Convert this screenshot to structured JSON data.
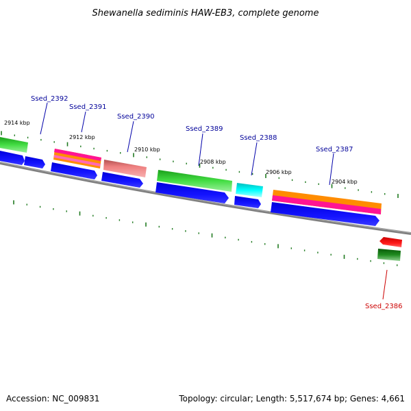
{
  "title": "Shewanella sediminis HAW-EB3, complete genome",
  "footer": {
    "accession": "Accession: NC_009831",
    "summary": "Topology: circular; Length: 5,517,674 bp; Genes: 4,661"
  },
  "ticks": [
    "2914 kbp",
    "2912 kbp",
    "2910 kbp",
    "2908 kbp",
    "2906 kbp",
    "2904 kbp"
  ],
  "genes": [
    {
      "id": "Ssed_2392"
    },
    {
      "id": "Ssed_2391"
    },
    {
      "id": "Ssed_2390"
    },
    {
      "id": "Ssed_2389"
    },
    {
      "id": "Ssed_2388"
    },
    {
      "id": "Ssed_2387"
    },
    {
      "id": "Ssed_2386"
    }
  ],
  "colors": {
    "backbone": "#808080",
    "cds_blue": "#0000ee",
    "label_blue": "#000099",
    "label_red": "#cc0000",
    "tick_green": "#1f7a1f"
  }
}
